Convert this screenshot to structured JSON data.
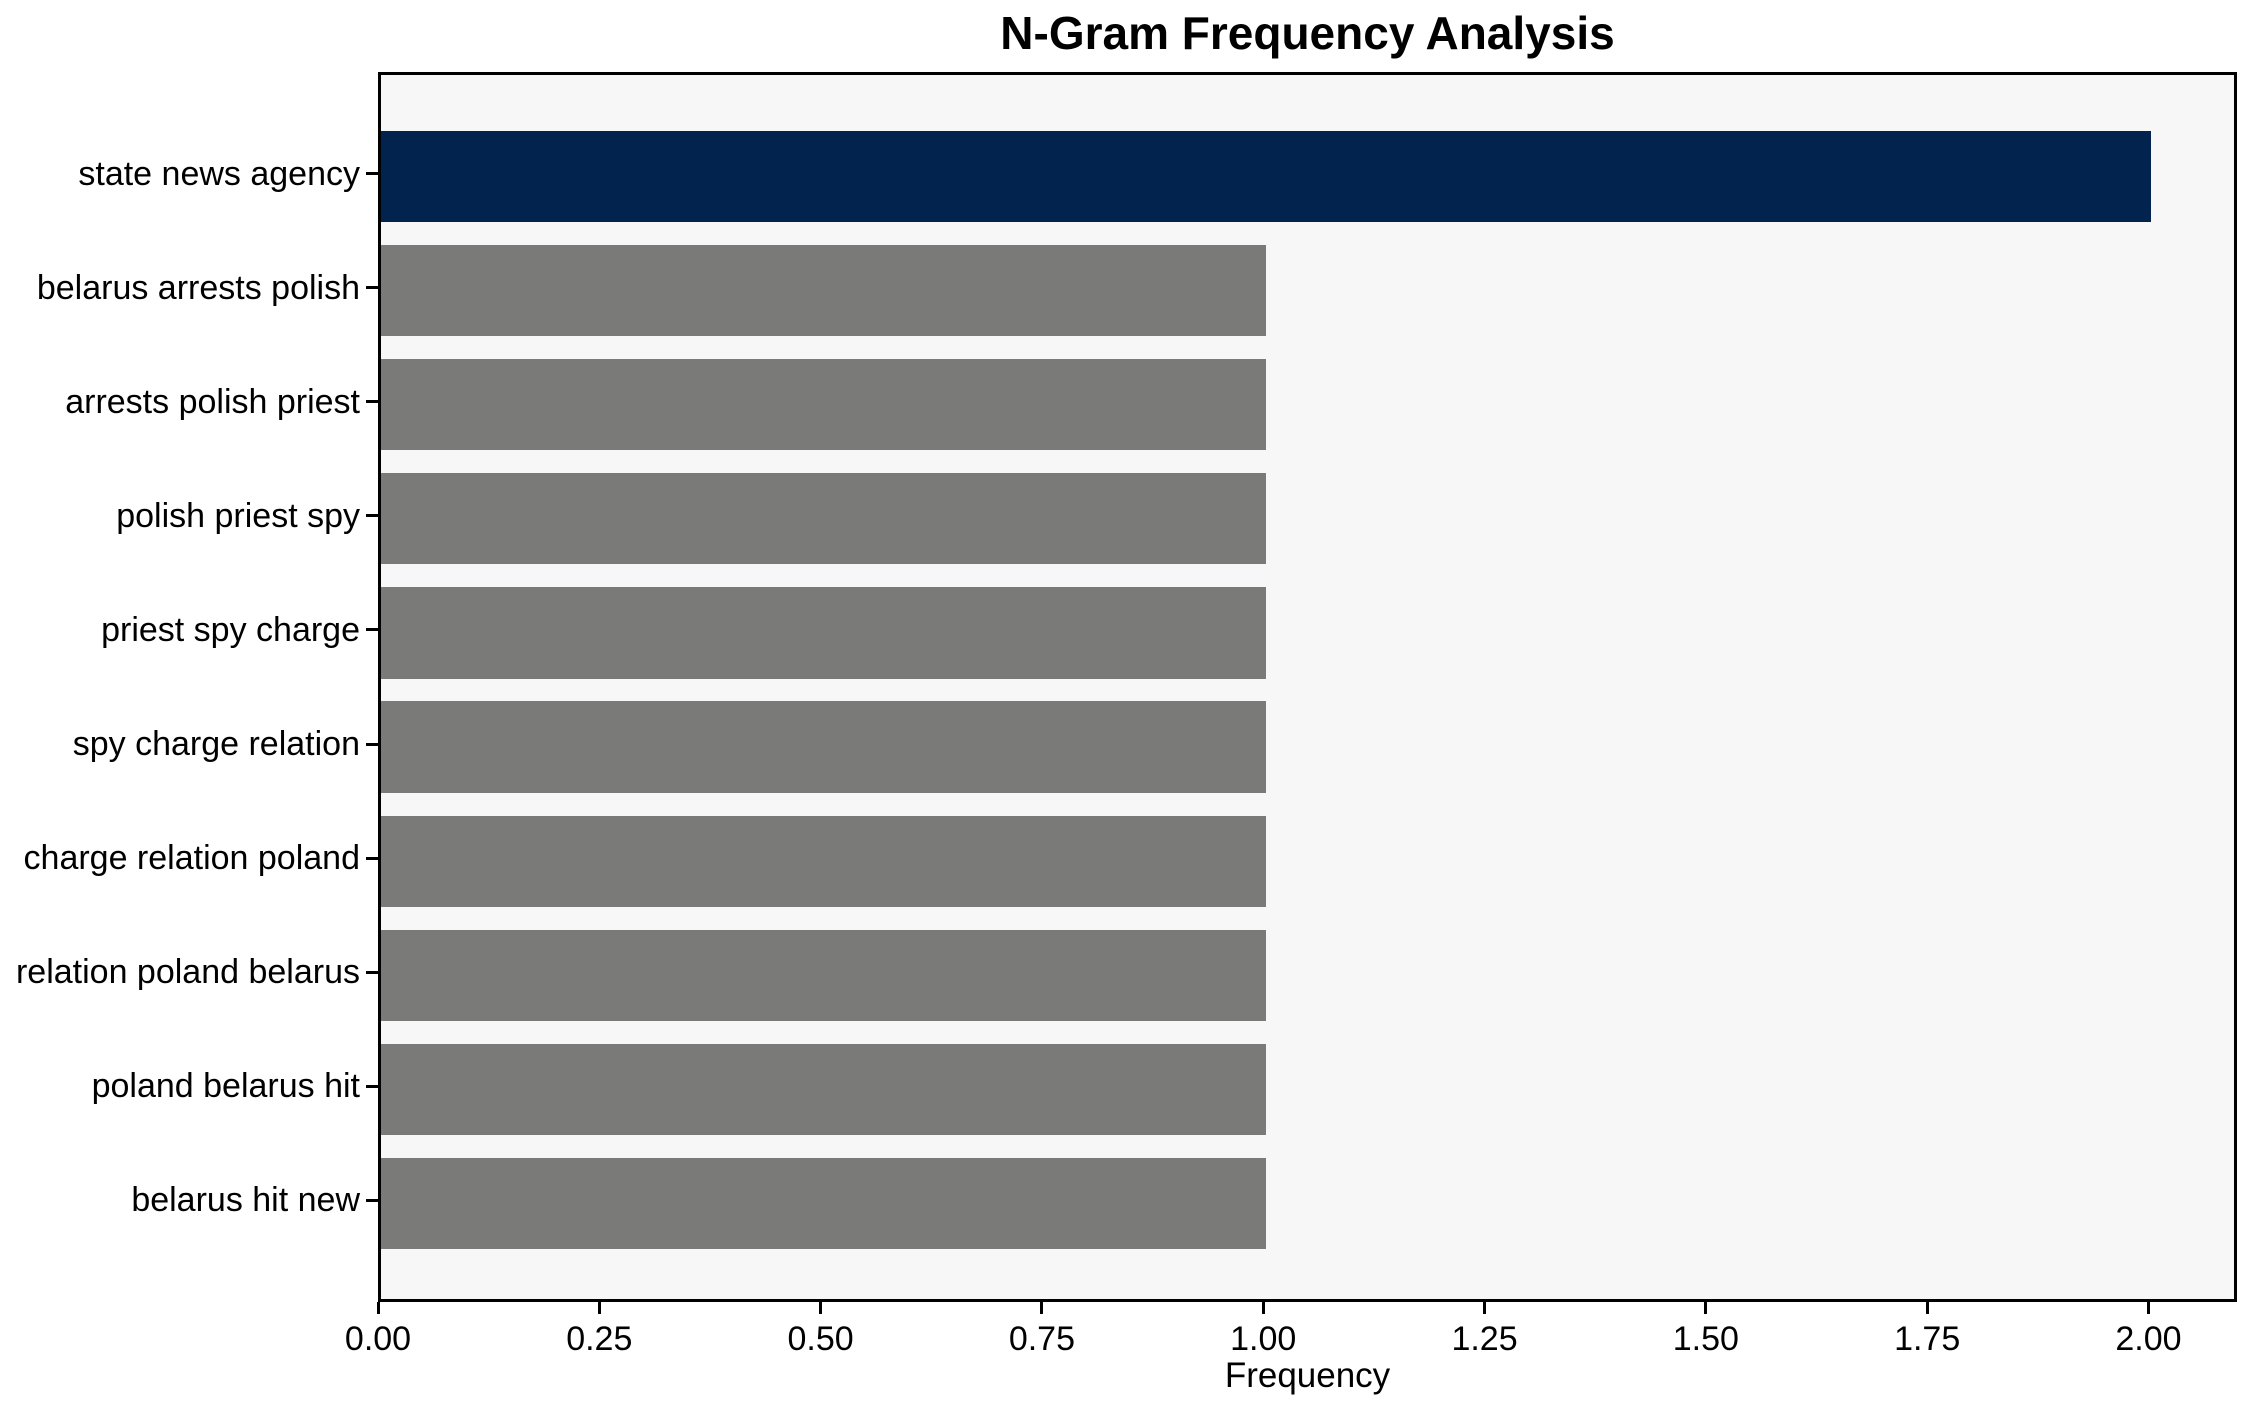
{
  "chart_data": {
    "type": "bar",
    "orientation": "horizontal",
    "title": "N-Gram Frequency Analysis",
    "xlabel": "Frequency",
    "ylabel": "",
    "categories": [
      "state news agency",
      "belarus arrests polish",
      "arrests polish priest",
      "polish priest spy",
      "priest spy charge",
      "spy charge relation",
      "charge relation poland",
      "relation poland belarus",
      "poland belarus hit",
      "belarus hit new"
    ],
    "values": [
      2,
      1,
      1,
      1,
      1,
      1,
      1,
      1,
      1,
      1
    ],
    "bar_colors": [
      "#02234d",
      "#7a7a78",
      "#7a7a78",
      "#7a7a78",
      "#7a7a78",
      "#7a7a78",
      "#7a7a78",
      "#7a7a78",
      "#7a7a78",
      "#7a7a78"
    ],
    "xlim": [
      0,
      2.1
    ],
    "xticks": [
      "0.00",
      "0.25",
      "0.50",
      "0.75",
      "1.00",
      "1.25",
      "1.50",
      "1.75",
      "2.00"
    ],
    "xtick_values": [
      0,
      0.25,
      0.5,
      0.75,
      1.0,
      1.25,
      1.5,
      1.75,
      2.0
    ],
    "grid": false,
    "legend": null,
    "colors": {
      "highlight_bar": "#02234d",
      "default_bar": "#7a7a78",
      "plot_background": "#f7f7f7",
      "figure_background": "#ffffff",
      "axis": "#000000",
      "text": "#000000"
    }
  }
}
